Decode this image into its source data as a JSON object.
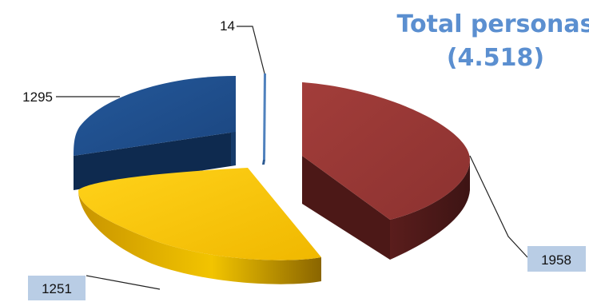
{
  "chart_data": {
    "type": "pie",
    "title_lines": [
      "Total personas",
      "(4.518)"
    ],
    "slices": [
      {
        "value": 1958,
        "label": "1958",
        "color": "#943634",
        "label_box": "#b9cde5"
      },
      {
        "value": 1251,
        "label": "1251",
        "color": "#f5c000",
        "label_box": "#b9cde5"
      },
      {
        "value": 1295,
        "label": "1295",
        "color": "#1f4e8a",
        "label_box": ""
      },
      {
        "value": 14,
        "label": "14",
        "color": "#4f81bd",
        "label_box": ""
      }
    ],
    "exploded": true,
    "three_d": true,
    "legend": "none",
    "grid": false
  }
}
